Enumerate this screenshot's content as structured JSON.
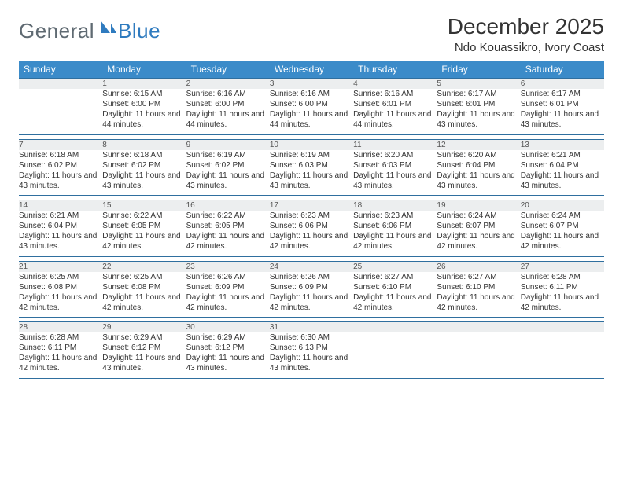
{
  "brand": {
    "word1": "General",
    "word2": "Blue"
  },
  "title": "December 2025",
  "location": "Ndo Kouassikro, Ivory Coast",
  "colors": {
    "header_bg": "#3b8bc9",
    "header_text": "#ffffff",
    "daynum_bg": "#eceeef",
    "rule": "#2f6f9f",
    "brand_gray": "#5f6a72",
    "brand_blue": "#2f7bbf"
  },
  "days": [
    "Sunday",
    "Monday",
    "Tuesday",
    "Wednesday",
    "Thursday",
    "Friday",
    "Saturday"
  ],
  "weeks": [
    [
      null,
      {
        "n": "1",
        "sr": "6:15 AM",
        "ss": "6:00 PM",
        "dl": "11 hours and 44 minutes."
      },
      {
        "n": "2",
        "sr": "6:16 AM",
        "ss": "6:00 PM",
        "dl": "11 hours and 44 minutes."
      },
      {
        "n": "3",
        "sr": "6:16 AM",
        "ss": "6:00 PM",
        "dl": "11 hours and 44 minutes."
      },
      {
        "n": "4",
        "sr": "6:16 AM",
        "ss": "6:01 PM",
        "dl": "11 hours and 44 minutes."
      },
      {
        "n": "5",
        "sr": "6:17 AM",
        "ss": "6:01 PM",
        "dl": "11 hours and 43 minutes."
      },
      {
        "n": "6",
        "sr": "6:17 AM",
        "ss": "6:01 PM",
        "dl": "11 hours and 43 minutes."
      }
    ],
    [
      {
        "n": "7",
        "sr": "6:18 AM",
        "ss": "6:02 PM",
        "dl": "11 hours and 43 minutes."
      },
      {
        "n": "8",
        "sr": "6:18 AM",
        "ss": "6:02 PM",
        "dl": "11 hours and 43 minutes."
      },
      {
        "n": "9",
        "sr": "6:19 AM",
        "ss": "6:02 PM",
        "dl": "11 hours and 43 minutes."
      },
      {
        "n": "10",
        "sr": "6:19 AM",
        "ss": "6:03 PM",
        "dl": "11 hours and 43 minutes."
      },
      {
        "n": "11",
        "sr": "6:20 AM",
        "ss": "6:03 PM",
        "dl": "11 hours and 43 minutes."
      },
      {
        "n": "12",
        "sr": "6:20 AM",
        "ss": "6:04 PM",
        "dl": "11 hours and 43 minutes."
      },
      {
        "n": "13",
        "sr": "6:21 AM",
        "ss": "6:04 PM",
        "dl": "11 hours and 43 minutes."
      }
    ],
    [
      {
        "n": "14",
        "sr": "6:21 AM",
        "ss": "6:04 PM",
        "dl": "11 hours and 43 minutes."
      },
      {
        "n": "15",
        "sr": "6:22 AM",
        "ss": "6:05 PM",
        "dl": "11 hours and 42 minutes."
      },
      {
        "n": "16",
        "sr": "6:22 AM",
        "ss": "6:05 PM",
        "dl": "11 hours and 42 minutes."
      },
      {
        "n": "17",
        "sr": "6:23 AM",
        "ss": "6:06 PM",
        "dl": "11 hours and 42 minutes."
      },
      {
        "n": "18",
        "sr": "6:23 AM",
        "ss": "6:06 PM",
        "dl": "11 hours and 42 minutes."
      },
      {
        "n": "19",
        "sr": "6:24 AM",
        "ss": "6:07 PM",
        "dl": "11 hours and 42 minutes."
      },
      {
        "n": "20",
        "sr": "6:24 AM",
        "ss": "6:07 PM",
        "dl": "11 hours and 42 minutes."
      }
    ],
    [
      {
        "n": "21",
        "sr": "6:25 AM",
        "ss": "6:08 PM",
        "dl": "11 hours and 42 minutes."
      },
      {
        "n": "22",
        "sr": "6:25 AM",
        "ss": "6:08 PM",
        "dl": "11 hours and 42 minutes."
      },
      {
        "n": "23",
        "sr": "6:26 AM",
        "ss": "6:09 PM",
        "dl": "11 hours and 42 minutes."
      },
      {
        "n": "24",
        "sr": "6:26 AM",
        "ss": "6:09 PM",
        "dl": "11 hours and 42 minutes."
      },
      {
        "n": "25",
        "sr": "6:27 AM",
        "ss": "6:10 PM",
        "dl": "11 hours and 42 minutes."
      },
      {
        "n": "26",
        "sr": "6:27 AM",
        "ss": "6:10 PM",
        "dl": "11 hours and 42 minutes."
      },
      {
        "n": "27",
        "sr": "6:28 AM",
        "ss": "6:11 PM",
        "dl": "11 hours and 42 minutes."
      }
    ],
    [
      {
        "n": "28",
        "sr": "6:28 AM",
        "ss": "6:11 PM",
        "dl": "11 hours and 42 minutes."
      },
      {
        "n": "29",
        "sr": "6:29 AM",
        "ss": "6:12 PM",
        "dl": "11 hours and 43 minutes."
      },
      {
        "n": "30",
        "sr": "6:29 AM",
        "ss": "6:12 PM",
        "dl": "11 hours and 43 minutes."
      },
      {
        "n": "31",
        "sr": "6:30 AM",
        "ss": "6:13 PM",
        "dl": "11 hours and 43 minutes."
      },
      null,
      null,
      null
    ]
  ],
  "labels": {
    "sunrise": "Sunrise:",
    "sunset": "Sunset:",
    "daylight": "Daylight:"
  }
}
